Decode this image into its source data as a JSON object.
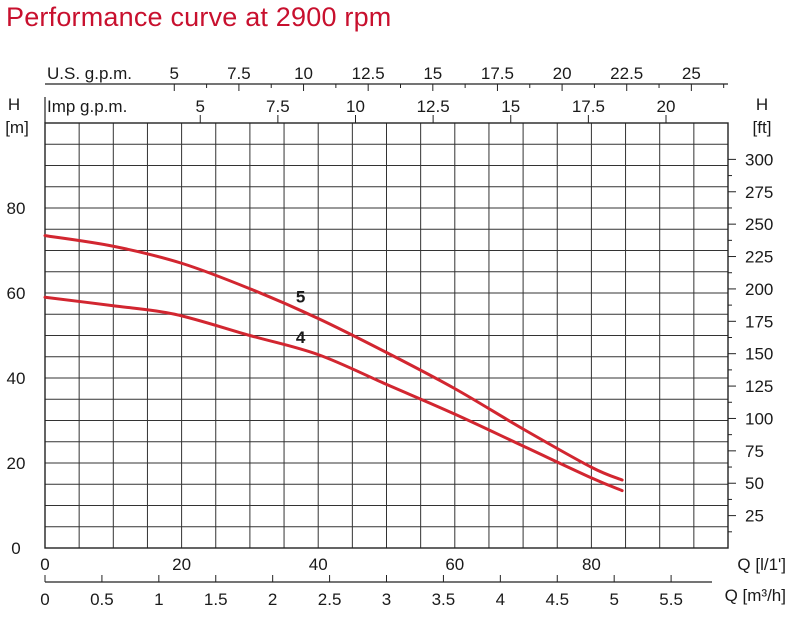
{
  "chart_data": {
    "type": "line",
    "title": "Performance curve at 2900 rpm",
    "colors": {
      "series": "#d22630",
      "grid": "#333333",
      "title": "#c8102e"
    },
    "axes": {
      "top_us": {
        "label": "U.S. g.p.m.",
        "ticks": [
          "5",
          "7.5",
          "10",
          "12.5",
          "15",
          "17.5",
          "20",
          "22.5",
          "25"
        ],
        "values": [
          5,
          7.5,
          10,
          12.5,
          15,
          17.5,
          20,
          22.5,
          25
        ]
      },
      "top_imp": {
        "label": "Imp g.p.m.",
        "ticks": [
          "5",
          "7.5",
          "10",
          "12.5",
          "15",
          "17.5",
          "20"
        ],
        "values": [
          5,
          7.5,
          10,
          12.5,
          15,
          17.5,
          20
        ]
      },
      "left": {
        "label_top": "H",
        "label_unit": "[m]",
        "ticks": [
          "0",
          "20",
          "40",
          "60",
          "80"
        ],
        "values": [
          0,
          20,
          40,
          60,
          80
        ],
        "range": [
          0,
          100
        ]
      },
      "right": {
        "label_top": "H",
        "label_unit": "[ft]",
        "ticks": [
          "25",
          "50",
          "75",
          "100",
          "125",
          "150",
          "175",
          "200",
          "225",
          "250",
          "275",
          "300"
        ],
        "values": [
          25,
          50,
          75,
          100,
          125,
          150,
          175,
          200,
          225,
          250,
          275,
          300
        ]
      },
      "bottom_ls": {
        "label": "Q [l/1']",
        "ticks": [
          "0",
          "20",
          "40",
          "60",
          "80"
        ],
        "values": [
          0,
          20,
          40,
          60,
          80
        ],
        "range": [
          0,
          100
        ]
      },
      "bottom_m3h": {
        "label": "Q [m³/h]",
        "ticks": [
          "0",
          "0.5",
          "1",
          "1.5",
          "2",
          "2.5",
          "3",
          "3.5",
          "4",
          "4.5",
          "5",
          "5.5"
        ],
        "values": [
          0,
          0.5,
          1,
          1.5,
          2,
          2.5,
          3,
          3.5,
          4,
          4.5,
          5,
          5.5
        ]
      }
    },
    "series": [
      {
        "name": "5",
        "x": [
          0,
          10,
          20,
          30,
          40,
          50,
          60,
          70,
          80,
          84.5
        ],
        "y": [
          73.5,
          71,
          67,
          61,
          54,
          46,
          37.5,
          28,
          19,
          16
        ]
      },
      {
        "name": "4",
        "x": [
          0,
          10,
          19,
          30,
          40,
          50,
          60,
          70,
          80,
          84.5
        ],
        "y": [
          59,
          57,
          55,
          50,
          45.5,
          38.5,
          31.5,
          24,
          16.5,
          13.5
        ]
      }
    ]
  }
}
